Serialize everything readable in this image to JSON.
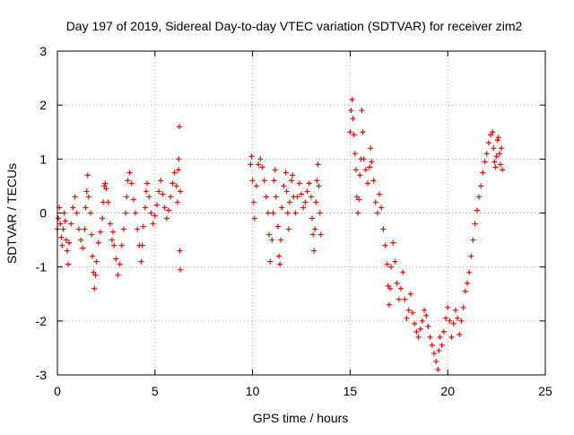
{
  "chart_data": {
    "type": "scatter",
    "title": "Day 197 of 2019, Sidereal Day-to-day VTEC variation (SDTVAR) for receiver zim2",
    "xlabel": "GPS time / hours",
    "ylabel": "SDTVAR / TECUs",
    "xlim": [
      0,
      25
    ],
    "ylim": [
      -3,
      3
    ],
    "x_ticks": [
      0,
      5,
      10,
      15,
      20,
      25
    ],
    "x_tick_labels": [
      "0",
      "5",
      "10",
      "15",
      "20",
      "25"
    ],
    "y_ticks": [
      -3,
      -2,
      -1,
      0,
      1,
      2,
      3
    ],
    "y_tick_labels": [
      "-3",
      "-2",
      "-1",
      "0",
      "1",
      "2",
      "3"
    ],
    "grid": true,
    "marker": "+",
    "colors": {
      "series": "#ff0000",
      "axes": "#000000",
      "grid": "#a0a0a0"
    },
    "series": [
      {
        "name": "SDTVAR",
        "points": [
          [
            0.0,
            -0.3
          ],
          [
            0.05,
            -0.1
          ],
          [
            0.1,
            0.1
          ],
          [
            0.15,
            -0.2
          ],
          [
            0.2,
            -0.45
          ],
          [
            0.25,
            -0.6
          ],
          [
            0.3,
            -0.3
          ],
          [
            0.35,
            0.0
          ],
          [
            0.4,
            -0.15
          ],
          [
            0.45,
            -0.5
          ],
          [
            0.5,
            -0.7
          ],
          [
            0.55,
            -0.95
          ],
          [
            0.6,
            -0.55
          ],
          [
            0.7,
            -0.2
          ],
          [
            0.8,
            0.1
          ],
          [
            0.9,
            0.3
          ],
          [
            1.0,
            0.0
          ],
          [
            1.1,
            -0.3
          ],
          [
            1.2,
            -0.5
          ],
          [
            1.3,
            -0.65
          ],
          [
            1.4,
            -0.3
          ],
          [
            1.45,
            0.1
          ],
          [
            1.5,
            0.4
          ],
          [
            1.55,
            0.7
          ],
          [
            1.6,
            0.3
          ],
          [
            1.7,
            0.0
          ],
          [
            1.75,
            -0.4
          ],
          [
            1.8,
            -0.8
          ],
          [
            1.85,
            -1.1
          ],
          [
            1.9,
            -1.4
          ],
          [
            1.95,
            -1.15
          ],
          [
            2.0,
            -0.9
          ],
          [
            2.1,
            -0.55
          ],
          [
            2.2,
            -0.35
          ],
          [
            2.3,
            -0.1
          ],
          [
            2.35,
            0.2
          ],
          [
            2.4,
            0.5
          ],
          [
            2.45,
            0.55
          ],
          [
            2.5,
            0.45
          ],
          [
            2.6,
            0.2
          ],
          [
            2.7,
            -0.2
          ],
          [
            2.8,
            -0.5
          ],
          [
            2.85,
            -0.35
          ],
          [
            2.9,
            -0.6
          ],
          [
            3.0,
            -0.85
          ],
          [
            3.1,
            -1.15
          ],
          [
            3.2,
            -0.95
          ],
          [
            3.3,
            -0.6
          ],
          [
            3.4,
            -0.3
          ],
          [
            3.5,
            0.0
          ],
          [
            3.55,
            0.3
          ],
          [
            3.6,
            0.6
          ],
          [
            3.7,
            0.75
          ],
          [
            3.8,
            0.55
          ],
          [
            3.9,
            0.25
          ],
          [
            4.0,
            0.0
          ],
          [
            4.1,
            -0.3
          ],
          [
            4.2,
            -0.6
          ],
          [
            4.3,
            -0.9
          ],
          [
            4.35,
            -0.6
          ],
          [
            4.4,
            -0.25
          ],
          [
            4.5,
            0.1
          ],
          [
            4.55,
            0.4
          ],
          [
            4.6,
            0.55
          ],
          [
            4.7,
            0.3
          ],
          [
            4.8,
            0.0
          ],
          [
            4.9,
            -0.2
          ],
          [
            5.0,
            -0.05
          ],
          [
            5.1,
            0.15
          ],
          [
            5.2,
            0.4
          ],
          [
            5.3,
            0.6
          ],
          [
            5.4,
            0.35
          ],
          [
            5.5,
            0.1
          ],
          [
            5.6,
            -0.1
          ],
          [
            5.7,
            0.05
          ],
          [
            5.8,
            0.3
          ],
          [
            5.9,
            0.55
          ],
          [
            6.0,
            0.75
          ],
          [
            6.1,
            0.5
          ],
          [
            6.15,
            0.2
          ],
          [
            6.2,
            0.8
          ],
          [
            6.22,
            1.0
          ],
          [
            6.25,
            1.6
          ],
          [
            6.27,
            -0.7
          ],
          [
            6.3,
            -1.05
          ],
          [
            6.3,
            0.4
          ],
          [
            9.9,
            0.9
          ],
          [
            9.95,
            1.05
          ],
          [
            10.0,
            0.6
          ],
          [
            10.05,
            0.2
          ],
          [
            10.1,
            -0.1
          ],
          [
            10.2,
            0.5
          ],
          [
            10.3,
            0.9
          ],
          [
            10.4,
            1.0
          ],
          [
            10.5,
            0.85
          ],
          [
            10.6,
            0.6
          ],
          [
            10.7,
            0.3
          ],
          [
            10.8,
            0.0
          ],
          [
            10.85,
            -0.4
          ],
          [
            10.9,
            -0.9
          ],
          [
            11.0,
            -0.5
          ],
          [
            11.05,
            0.0
          ],
          [
            11.1,
            0.6
          ],
          [
            11.15,
            0.8
          ],
          [
            11.2,
            0.3
          ],
          [
            11.3,
            -0.25
          ],
          [
            11.35,
            -0.8
          ],
          [
            11.4,
            -0.95
          ],
          [
            11.45,
            -0.5
          ],
          [
            11.5,
            0.1
          ],
          [
            11.6,
            0.5
          ],
          [
            11.7,
            0.75
          ],
          [
            11.75,
            0.4
          ],
          [
            11.8,
            0.0
          ],
          [
            11.85,
            -0.3
          ],
          [
            11.9,
            0.2
          ],
          [
            12.0,
            0.6
          ],
          [
            12.05,
            0.7
          ],
          [
            12.1,
            0.3
          ],
          [
            12.2,
            0.0
          ],
          [
            12.3,
            0.3
          ],
          [
            12.4,
            0.55
          ],
          [
            12.5,
            0.35
          ],
          [
            12.6,
            0.1
          ],
          [
            12.7,
            0.2
          ],
          [
            12.8,
            0.4
          ],
          [
            12.9,
            0.55
          ],
          [
            13.0,
            0.3
          ],
          [
            13.05,
            -0.1
          ],
          [
            13.1,
            -0.4
          ],
          [
            13.15,
            -0.7
          ],
          [
            13.2,
            -0.3
          ],
          [
            13.25,
            0.2
          ],
          [
            13.3,
            0.6
          ],
          [
            13.35,
            0.9
          ],
          [
            13.4,
            0.5
          ],
          [
            13.45,
            0.0
          ],
          [
            13.5,
            -0.4
          ],
          [
            15.0,
            1.5
          ],
          [
            15.05,
            1.9
          ],
          [
            15.1,
            2.1
          ],
          [
            15.15,
            1.75
          ],
          [
            15.2,
            1.45
          ],
          [
            15.25,
            1.1
          ],
          [
            15.3,
            0.8
          ],
          [
            15.35,
            0.3
          ],
          [
            15.4,
            0.0
          ],
          [
            15.45,
            0.25
          ],
          [
            15.5,
            0.7
          ],
          [
            15.55,
            1.0
          ],
          [
            15.6,
            1.9
          ],
          [
            15.65,
            1.5
          ],
          [
            15.7,
            1.0
          ],
          [
            15.8,
            0.8
          ],
          [
            15.9,
            0.55
          ],
          [
            16.0,
            0.85
          ],
          [
            16.05,
            1.2
          ],
          [
            16.1,
            0.95
          ],
          [
            16.2,
            0.6
          ],
          [
            16.3,
            0.2
          ],
          [
            16.4,
            0.0
          ],
          [
            16.5,
            0.35
          ],
          [
            16.6,
            0.1
          ],
          [
            16.7,
            -0.3
          ],
          [
            16.8,
            -0.6
          ],
          [
            16.9,
            -0.95
          ],
          [
            16.95,
            -1.35
          ],
          [
            17.0,
            -1.7
          ],
          [
            17.05,
            -1.4
          ],
          [
            17.1,
            -1.0
          ],
          [
            17.2,
            -0.55
          ],
          [
            17.3,
            -0.9
          ],
          [
            17.4,
            -1.3
          ],
          [
            17.5,
            -1.6
          ],
          [
            17.6,
            -1.4
          ],
          [
            17.7,
            -1.1
          ],
          [
            17.8,
            -1.6
          ],
          [
            17.9,
            -1.95
          ],
          [
            18.0,
            -1.8
          ],
          [
            18.1,
            -1.5
          ],
          [
            18.2,
            -1.85
          ],
          [
            18.3,
            -2.05
          ],
          [
            18.4,
            -2.2
          ],
          [
            18.5,
            -2.3
          ],
          [
            18.6,
            -2.15
          ],
          [
            18.7,
            -2.0
          ],
          [
            18.8,
            -1.8
          ],
          [
            18.9,
            -1.9
          ],
          [
            19.0,
            -2.1
          ],
          [
            19.1,
            -2.3
          ],
          [
            19.2,
            -2.45
          ],
          [
            19.3,
            -2.6
          ],
          [
            19.4,
            -2.75
          ],
          [
            19.5,
            -2.9
          ],
          [
            19.55,
            -2.55
          ],
          [
            19.6,
            -2.3
          ],
          [
            19.7,
            -2.45
          ],
          [
            19.8,
            -2.2
          ],
          [
            19.9,
            -1.95
          ],
          [
            20.0,
            -1.75
          ],
          [
            20.1,
            -2.0
          ],
          [
            20.2,
            -2.3
          ],
          [
            20.3,
            -2.05
          ],
          [
            20.4,
            -1.8
          ],
          [
            20.5,
            -1.95
          ],
          [
            20.6,
            -2.25
          ],
          [
            20.7,
            -2.0
          ],
          [
            20.8,
            -1.75
          ],
          [
            20.9,
            -1.45
          ],
          [
            21.0,
            -1.3
          ],
          [
            21.1,
            -1.1
          ],
          [
            21.2,
            -0.8
          ],
          [
            21.3,
            -0.5
          ],
          [
            21.4,
            -0.2
          ],
          [
            21.5,
            0.05
          ],
          [
            21.6,
            0.3
          ],
          [
            21.7,
            0.5
          ],
          [
            21.8,
            0.75
          ],
          [
            21.9,
            0.95
          ],
          [
            22.0,
            1.1
          ],
          [
            22.1,
            1.3
          ],
          [
            22.2,
            1.45
          ],
          [
            22.3,
            1.5
          ],
          [
            22.35,
            1.2
          ],
          [
            22.4,
            0.95
          ],
          [
            22.45,
            0.85
          ],
          [
            22.5,
            1.05
          ],
          [
            22.55,
            1.35
          ],
          [
            22.6,
            1.4
          ],
          [
            22.65,
            1.1
          ],
          [
            22.7,
            0.9
          ],
          [
            22.75,
            1.2
          ],
          [
            22.8,
            0.8
          ]
        ]
      }
    ]
  }
}
